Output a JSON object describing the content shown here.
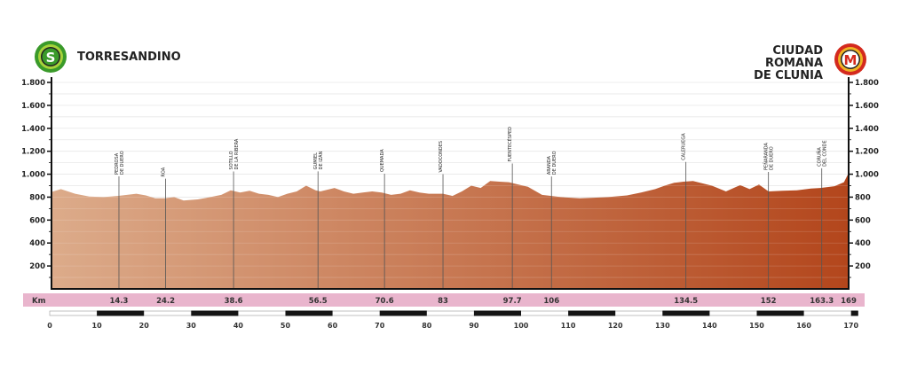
{
  "start": {
    "name": "TORRESANDINO",
    "badge": "S",
    "badge_color": "#3a9a2a"
  },
  "finish": {
    "name_lines": [
      "CIUDAD",
      "ROMANA",
      "DE CLUNIA"
    ],
    "badge": "M",
    "badge_color": "#d42a1e"
  },
  "colors": {
    "profile_start": "#dcab8a",
    "profile_end": "#b3461c",
    "km_band": "#e9b5cd"
  },
  "chart_data": {
    "type": "area",
    "title": "",
    "xlabel": "",
    "ylabel": "",
    "xlim": [
      0,
      169
    ],
    "ylim": [
      0,
      1800
    ],
    "y_ticks": [
      "200",
      "400",
      "600",
      "800",
      "1.000",
      "1.200",
      "1.400",
      "1.600",
      "1.800"
    ],
    "y_tick_values": [
      200,
      400,
      600,
      800,
      1000,
      1200,
      1400,
      1600,
      1800
    ],
    "grid": true,
    "km_band_label": "Km",
    "scale_ticks": [
      "0",
      "10",
      "20",
      "30",
      "40",
      "50",
      "60",
      "70",
      "80",
      "90",
      "100",
      "110",
      "120",
      "130",
      "140",
      "150",
      "160",
      "170"
    ],
    "waypoints": [
      {
        "km": 14.3,
        "km_label": "14.3",
        "name": "PEDROSA",
        "sub": "DE DUERO"
      },
      {
        "km": 24.2,
        "km_label": "24.2",
        "name": "ROA",
        "sub": ""
      },
      {
        "km": 38.6,
        "km_label": "38.6",
        "name": "SOTILLO",
        "sub": "DE LA RIBERA"
      },
      {
        "km": 56.5,
        "km_label": "56.5",
        "name": "GUMIEL",
        "sub": "DE IZÁN"
      },
      {
        "km": 70.6,
        "km_label": "70.6",
        "name": "QUEMADA",
        "sub": ""
      },
      {
        "km": 83,
        "km_label": "83",
        "name": "VADOCONDES",
        "sub": ""
      },
      {
        "km": 97.7,
        "km_label": "97.7",
        "name": "FUENTECÉSPED",
        "sub": ""
      },
      {
        "km": 106,
        "km_label": "106",
        "name": "ARANDA",
        "sub": "DE DUERO"
      },
      {
        "km": 134.5,
        "km_label": "134.5",
        "name": "CALERUEGA",
        "sub": ""
      },
      {
        "km": 152,
        "km_label": "152",
        "name": "PEÑARANDA",
        "sub": "DE DUERO"
      },
      {
        "km": 163.3,
        "km_label": "163.3",
        "name": "CORUÑA",
        "sub": "DEL CONDE"
      },
      {
        "km": 169,
        "km_label": "169",
        "name": "",
        "sub": ""
      }
    ],
    "profile": {
      "x": [
        0,
        2,
        5,
        8,
        11,
        14,
        16,
        18,
        20,
        22,
        24,
        26,
        28,
        31,
        33,
        36,
        38,
        40,
        42,
        44,
        46,
        48,
        50,
        52,
        54,
        56,
        57,
        60,
        62,
        64,
        66,
        68,
        70,
        72,
        74,
        76,
        78,
        80,
        83,
        85,
        87,
        89,
        91,
        93,
        95,
        97,
        99,
        101,
        104,
        108,
        110,
        112,
        115,
        118,
        122,
        125,
        128,
        130,
        132,
        134,
        136,
        138,
        140,
        143,
        146,
        148,
        150,
        152,
        155,
        158,
        161,
        163,
        166,
        168,
        169
      ],
      "y": [
        845,
        870,
        830,
        805,
        800,
        810,
        820,
        830,
        815,
        790,
        790,
        800,
        770,
        780,
        795,
        820,
        860,
        840,
        855,
        830,
        820,
        800,
        830,
        850,
        900,
        860,
        850,
        880,
        850,
        830,
        840,
        850,
        840,
        820,
        830,
        860,
        840,
        830,
        830,
        810,
        850,
        900,
        880,
        940,
        935,
        930,
        910,
        890,
        820,
        800,
        795,
        790,
        795,
        800,
        815,
        840,
        870,
        900,
        925,
        935,
        940,
        920,
        900,
        850,
        905,
        870,
        910,
        850,
        855,
        860,
        875,
        880,
        895,
        930,
        1010
      ]
    }
  }
}
